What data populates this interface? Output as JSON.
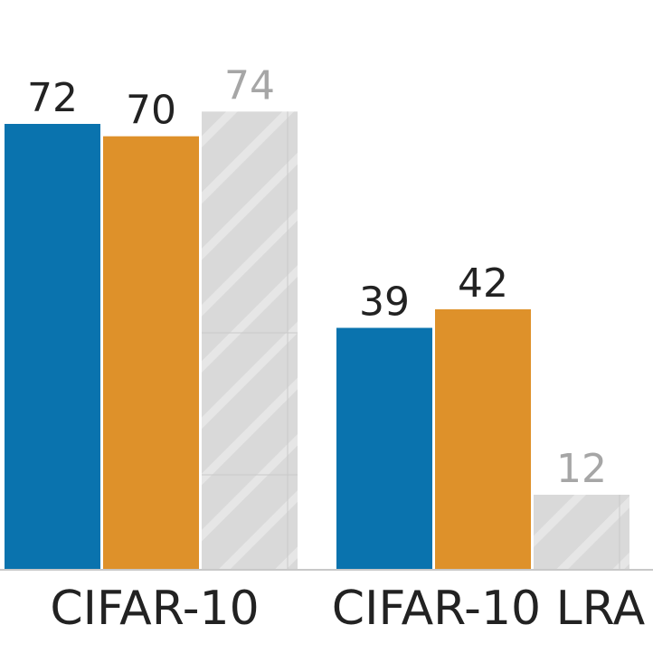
{
  "chart_data": {
    "type": "bar",
    "categories": [
      "CIFAR-10",
      "CIFAR-10 LRA"
    ],
    "series": [
      {
        "values": [
          72,
          39
        ],
        "color": "#0a73ae",
        "hatched": false
      },
      {
        "values": [
          70,
          42
        ],
        "color": "#de912a",
        "hatched": false
      },
      {
        "values": [
          74,
          12
        ],
        "color": "#d9d9d9",
        "hatched": true
      }
    ],
    "ylim": [
      0,
      84
    ],
    "title": "",
    "xlabel": "",
    "ylabel": "",
    "grid": false,
    "legend": "none",
    "value_label_colors": [
      "#222222",
      "#222222",
      "#a6a6a6"
    ],
    "axis_color": "#c8c8c8"
  }
}
